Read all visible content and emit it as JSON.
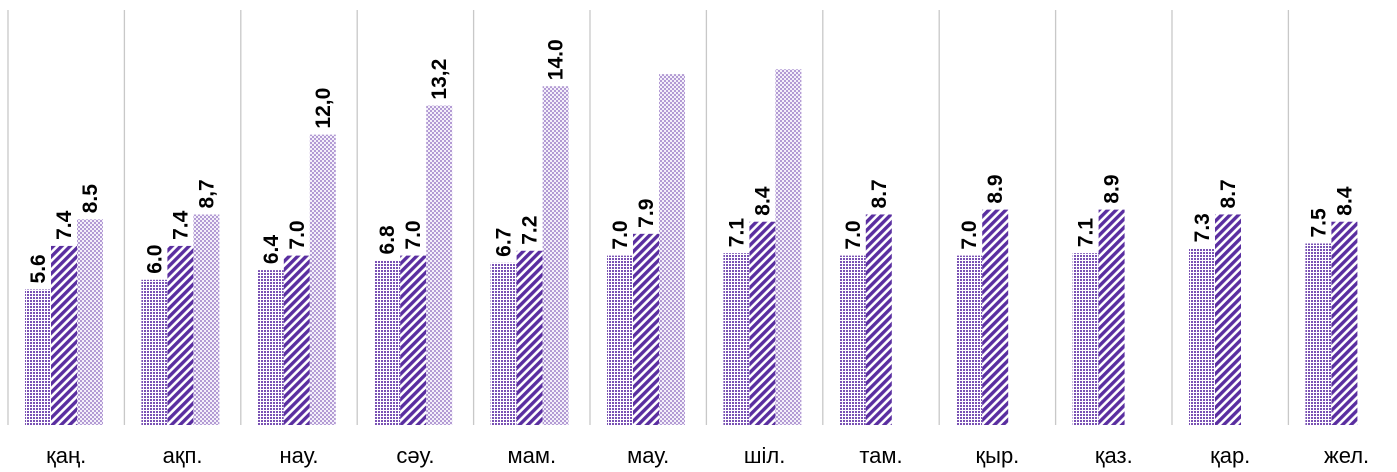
{
  "chart_data": {
    "type": "bar",
    "categories": [
      "қаң.",
      "ақп.",
      "нау.",
      "сәу.",
      "мам.",
      "мау.",
      "шіл.",
      "там.",
      "қыр.",
      "қаз.",
      "қар.",
      "жел."
    ],
    "series": [
      {
        "pattern": "dotted",
        "values": [
          5.6,
          6.0,
          6.4,
          6.8,
          6.7,
          7.0,
          7.1,
          7.0,
          7.0,
          7.1,
          7.3,
          7.5
        ],
        "labels": [
          "5.6",
          "6.0",
          "6.4",
          "6.8",
          "6.7",
          "7.0",
          "7.1",
          "7.0",
          "7.0",
          "7.1",
          "7.3",
          "7.5"
        ]
      },
      {
        "pattern": "diagonal",
        "values": [
          7.4,
          7.4,
          7.0,
          7.0,
          7.2,
          7.9,
          8.4,
          8.7,
          8.9,
          8.9,
          8.7,
          8.4
        ],
        "labels": [
          "7.4",
          "7.4",
          "7.0",
          "7.0",
          "7.2",
          "7.9",
          "8.4",
          "8.7",
          "8.9",
          "8.9",
          "8.7",
          "8.4"
        ]
      },
      {
        "pattern": "checker",
        "values": [
          8.5,
          8.7,
          12.0,
          13.2,
          14.0,
          14.5,
          14.7,
          null,
          null,
          null,
          null,
          null
        ],
        "labels": [
          "8.5",
          "8,7",
          "12,0",
          "13,2",
          "14.0",
          "",
          "",
          "",
          "",
          "",
          "",
          ""
        ]
      }
    ],
    "colors": {
      "primary": "#6a3fa8",
      "light": "#b7a2d6",
      "grid": "#c8c8c8"
    },
    "grid": "vertical category separators",
    "ylim": [
      0,
      16
    ]
  }
}
